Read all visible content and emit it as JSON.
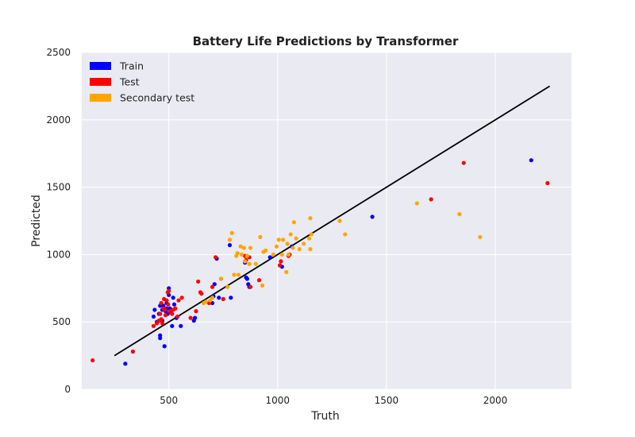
{
  "chart_data": {
    "type": "scatter",
    "title": "Battery Life Predictions by Transformer",
    "xlabel": "Truth",
    "ylabel": "Predicted",
    "xlim": [
      100,
      2350
    ],
    "ylim": [
      0,
      2500
    ],
    "xticks": [
      500,
      1000,
      1500,
      2000
    ],
    "yticks": [
      0,
      500,
      1000,
      1500,
      2000,
      2500
    ],
    "grid": true,
    "legend_position": "top-left",
    "reference_line": {
      "x": [
        250,
        2250
      ],
      "y": [
        250,
        2250
      ],
      "color": "#000000"
    },
    "series": [
      {
        "name": "Train",
        "color": "#0000ff",
        "points": [
          [
            300,
            190
          ],
          [
            430,
            540
          ],
          [
            435,
            590
          ],
          [
            445,
            500
          ],
          [
            455,
            560
          ],
          [
            460,
            620
          ],
          [
            460,
            400
          ],
          [
            460,
            380
          ],
          [
            470,
            590
          ],
          [
            470,
            510
          ],
          [
            475,
            620
          ],
          [
            480,
            320
          ],
          [
            485,
            580
          ],
          [
            490,
            640
          ],
          [
            490,
            600
          ],
          [
            495,
            560
          ],
          [
            500,
            700
          ],
          [
            500,
            750
          ],
          [
            505,
            600
          ],
          [
            510,
            590
          ],
          [
            515,
            470
          ],
          [
            520,
            680
          ],
          [
            525,
            630
          ],
          [
            535,
            530
          ],
          [
            555,
            470
          ],
          [
            615,
            510
          ],
          [
            620,
            530
          ],
          [
            700,
            640
          ],
          [
            705,
            690
          ],
          [
            710,
            780
          ],
          [
            720,
            970
          ],
          [
            730,
            680
          ],
          [
            740,
            820
          ],
          [
            780,
            1070
          ],
          [
            785,
            680
          ],
          [
            850,
            940
          ],
          [
            855,
            830
          ],
          [
            860,
            820
          ],
          [
            865,
            780
          ],
          [
            870,
            760
          ],
          [
            965,
            980
          ],
          [
            1010,
            920
          ],
          [
            1020,
            910
          ],
          [
            1065,
            1060
          ],
          [
            1435,
            1280
          ],
          [
            2165,
            1700
          ]
        ]
      },
      {
        "name": "Test",
        "color": "#ff0000",
        "points": [
          [
            150,
            215
          ],
          [
            335,
            280
          ],
          [
            430,
            470
          ],
          [
            445,
            490
          ],
          [
            455,
            510
          ],
          [
            460,
            560
          ],
          [
            465,
            520
          ],
          [
            465,
            640
          ],
          [
            470,
            490
          ],
          [
            475,
            600
          ],
          [
            478,
            670
          ],
          [
            482,
            590
          ],
          [
            485,
            550
          ],
          [
            490,
            660
          ],
          [
            495,
            720
          ],
          [
            497,
            630
          ],
          [
            500,
            730
          ],
          [
            505,
            580
          ],
          [
            510,
            570
          ],
          [
            515,
            560
          ],
          [
            520,
            590
          ],
          [
            530,
            600
          ],
          [
            540,
            540
          ],
          [
            545,
            660
          ],
          [
            560,
            680
          ],
          [
            600,
            530
          ],
          [
            625,
            580
          ],
          [
            635,
            800
          ],
          [
            645,
            720
          ],
          [
            650,
            710
          ],
          [
            685,
            640
          ],
          [
            700,
            760
          ],
          [
            715,
            980
          ],
          [
            750,
            670
          ],
          [
            850,
            990
          ],
          [
            855,
            960
          ],
          [
            870,
            980
          ],
          [
            875,
            760
          ],
          [
            915,
            810
          ],
          [
            1010,
            920
          ],
          [
            1015,
            950
          ],
          [
            1050,
            990
          ],
          [
            1055,
            1000
          ],
          [
            1705,
            1410
          ],
          [
            1855,
            1680
          ],
          [
            2240,
            1530
          ]
        ]
      },
      {
        "name": "Secondary test",
        "color": "#ffa500",
        "points": [
          [
            660,
            640
          ],
          [
            670,
            650
          ],
          [
            690,
            660
          ],
          [
            700,
            680
          ],
          [
            740,
            820
          ],
          [
            770,
            760
          ],
          [
            780,
            1110
          ],
          [
            790,
            1160
          ],
          [
            800,
            850
          ],
          [
            810,
            990
          ],
          [
            815,
            1010
          ],
          [
            820,
            850
          ],
          [
            830,
            1060
          ],
          [
            835,
            1000
          ],
          [
            845,
            1050
          ],
          [
            850,
            950
          ],
          [
            860,
            990
          ],
          [
            870,
            930
          ],
          [
            875,
            1050
          ],
          [
            900,
            930
          ],
          [
            920,
            1130
          ],
          [
            930,
            770
          ],
          [
            935,
            1020
          ],
          [
            945,
            1030
          ],
          [
            980,
            1000
          ],
          [
            995,
            1060
          ],
          [
            1005,
            1110
          ],
          [
            1020,
            1000
          ],
          [
            1025,
            1110
          ],
          [
            1040,
            870
          ],
          [
            1045,
            1080
          ],
          [
            1050,
            1000
          ],
          [
            1060,
            1150
          ],
          [
            1070,
            1050
          ],
          [
            1075,
            1240
          ],
          [
            1085,
            1120
          ],
          [
            1100,
            1040
          ],
          [
            1120,
            1080
          ],
          [
            1145,
            1120
          ],
          [
            1150,
            1040
          ],
          [
            1150,
            1270
          ],
          [
            1155,
            1150
          ],
          [
            1285,
            1250
          ],
          [
            1310,
            1150
          ],
          [
            1640,
            1380
          ],
          [
            1835,
            1300
          ],
          [
            1930,
            1130
          ]
        ]
      }
    ]
  }
}
